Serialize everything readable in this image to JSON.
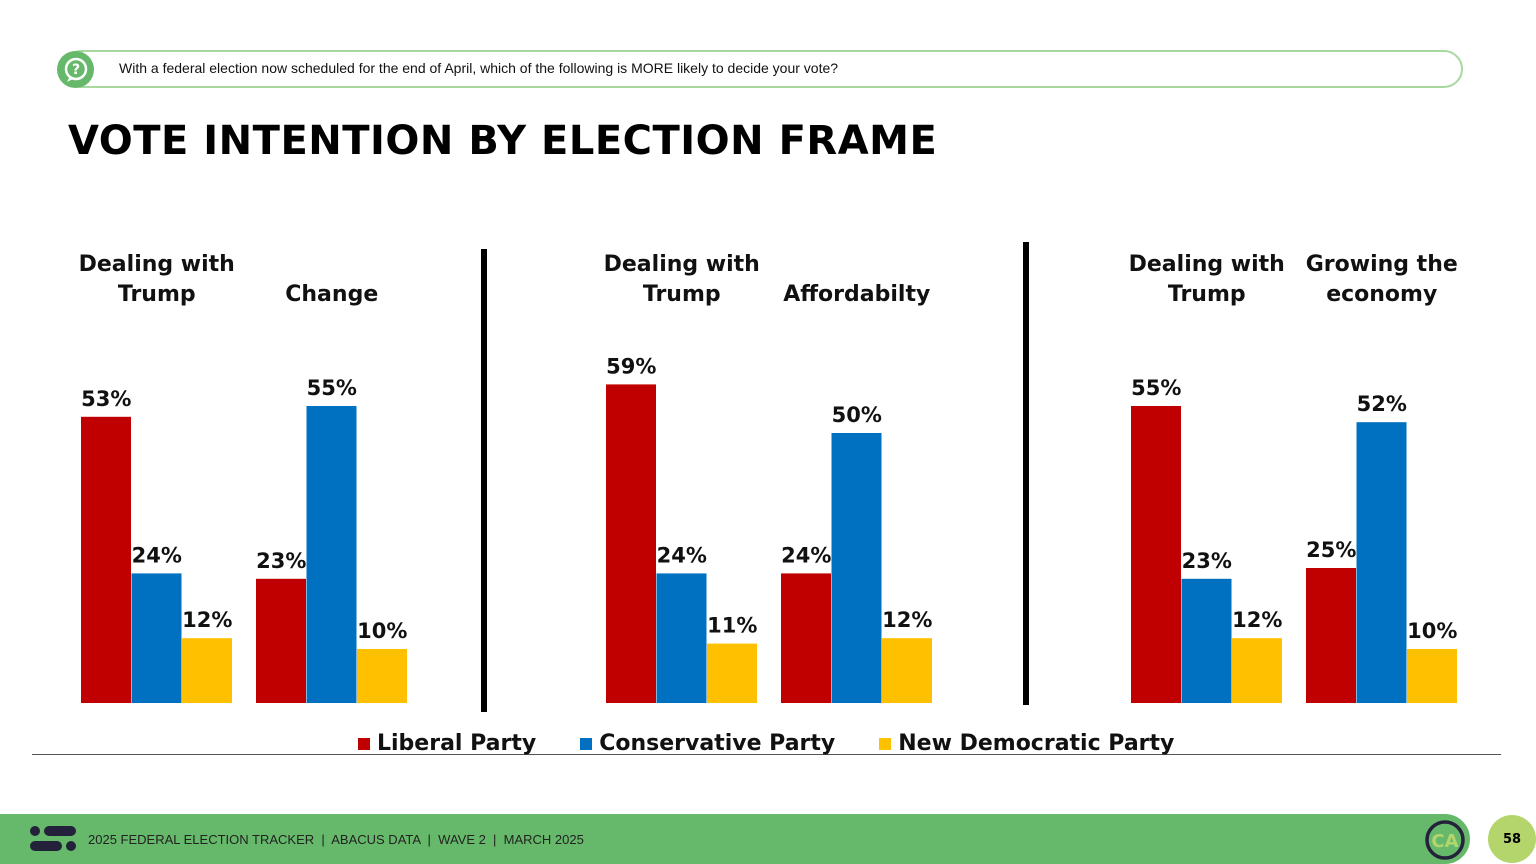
{
  "question": "With a federal election now scheduled for the end of April, which of the following is MORE likely to decide your vote?",
  "title": "VOTE INTENTION BY ELECTION FRAME",
  "footer": {
    "text": "2025 FEDERAL ELECTION TRACKER  |  ABACUS DATA  |  WAVE 2  |  MARCH 2025",
    "page": "58",
    "logo_text": "CA"
  },
  "colors": {
    "Liberal Party": "#c00000",
    "Conservative Party": "#0070c0",
    "New Democratic Party": "#ffc000",
    "accent": "#66b96a"
  },
  "chart_data": {
    "type": "bar",
    "series_names": [
      "Liberal Party",
      "Conservative Party",
      "New Democratic Party"
    ],
    "legend": "bottom",
    "ylim": [
      0,
      60
    ],
    "panels": [
      {
        "groups": [
          {
            "label": "Dealing with Trump",
            "values": [
              53,
              24,
              12
            ]
          },
          {
            "label": "Change",
            "values": [
              23,
              55,
              10
            ]
          }
        ]
      },
      {
        "groups": [
          {
            "label": "Dealing with Trump",
            "values": [
              59,
              24,
              11
            ]
          },
          {
            "label": "Affordabilty",
            "values": [
              24,
              50,
              12
            ]
          }
        ]
      },
      {
        "groups": [
          {
            "label": "Dealing with Trump",
            "values": [
              55,
              23,
              12
            ]
          },
          {
            "label": "Growing the economy",
            "values": [
              25,
              52,
              10
            ]
          }
        ]
      }
    ]
  }
}
